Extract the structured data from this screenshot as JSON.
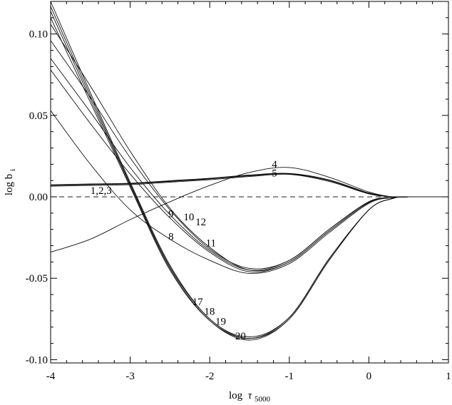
{
  "chart_data": {
    "type": "line",
    "title": "",
    "xlabel": "log",
    "xlabel_tau": "τ",
    "xlabel_sub": "5000",
    "ylabel": "log b",
    "ylabel_sub": "i",
    "xlim": [
      -4,
      1
    ],
    "ylim": [
      -0.102,
      0.12
    ],
    "xticks": [
      -4,
      -3,
      -2,
      -1,
      0,
      1
    ],
    "xtick_labels": [
      "-4",
      "-3",
      "-2",
      "-1",
      "0",
      "1"
    ],
    "yticks": [
      -0.1,
      -0.05,
      0.0,
      0.05,
      0.1
    ],
    "ytick_labels": [
      "-0.10",
      "-0.05",
      "0.00",
      "0.05",
      "0.10"
    ],
    "reference_line": {
      "y": 0.0,
      "style": "dashed"
    },
    "series": [
      {
        "name": "1",
        "x": [
          -4.0,
          -3.5,
          -3.0,
          -2.5,
          -2.0,
          -1.5,
          -1.0,
          -0.5,
          0.0,
          0.3,
          0.5,
          1.0
        ],
        "y": [
          0.007,
          0.0075,
          0.008,
          0.0095,
          0.011,
          0.013,
          0.014,
          0.01,
          0.002,
          0.0,
          0.0,
          0.0
        ]
      },
      {
        "name": "2",
        "x": [
          -4.0,
          -3.5,
          -3.0,
          -2.5,
          -2.0,
          -1.5,
          -1.0,
          -0.5,
          0.0,
          0.3,
          0.5,
          1.0
        ],
        "y": [
          0.0072,
          0.0077,
          0.0082,
          0.0097,
          0.0112,
          0.0132,
          0.0142,
          0.0102,
          0.0022,
          0.0,
          0.0,
          0.0
        ]
      },
      {
        "name": "3",
        "x": [
          -4.0,
          -3.5,
          -3.0,
          -2.5,
          -2.0,
          -1.5,
          -1.0,
          -0.5,
          0.0,
          0.3,
          0.5,
          1.0
        ],
        "y": [
          0.0074,
          0.0079,
          0.0084,
          0.0099,
          0.0114,
          0.0134,
          0.0144,
          0.0104,
          0.0024,
          0.0,
          0.0,
          0.0
        ]
      },
      {
        "name": "4",
        "x": [
          -4.0,
          -3.5,
          -3.0,
          -2.5,
          -2.0,
          -1.5,
          -1.0,
          -0.5,
          0.0,
          0.3,
          0.5,
          1.0
        ],
        "y": [
          -0.034,
          -0.026,
          -0.014,
          -0.003,
          0.007,
          0.015,
          0.018,
          0.012,
          0.003,
          0.0,
          0.0,
          0.0
        ]
      },
      {
        "name": "5",
        "x": [
          -4.0,
          -3.5,
          -3.0,
          -2.5,
          -2.0,
          -1.5,
          -1.0,
          -0.5,
          0.0,
          0.3,
          0.5,
          1.0
        ],
        "y": [
          0.0065,
          0.007,
          0.0075,
          0.009,
          0.0105,
          0.0125,
          0.0138,
          0.0095,
          0.0018,
          0.0,
          0.0,
          0.0
        ]
      },
      {
        "name": "8",
        "x": [
          -4.0,
          -3.5,
          -3.0,
          -2.5,
          -2.0,
          -1.5,
          -1.0,
          -0.5,
          0.0,
          0.3,
          0.5,
          1.0
        ],
        "y": [
          0.053,
          0.02,
          -0.008,
          -0.026,
          -0.039,
          -0.047,
          -0.041,
          -0.022,
          -0.004,
          -0.0005,
          0.0,
          0.0
        ]
      },
      {
        "name": "9",
        "x": [
          -4.0,
          -3.5,
          -3.0,
          -2.5,
          -2.0,
          -1.5,
          -1.0,
          -0.5,
          0.0,
          0.3,
          0.5,
          1.0
        ],
        "y": [
          0.078,
          0.045,
          0.014,
          -0.013,
          -0.034,
          -0.046,
          -0.04,
          -0.021,
          -0.0035,
          -0.0005,
          0.0,
          0.0
        ]
      },
      {
        "name": "10",
        "x": [
          -4.0,
          -3.5,
          -3.0,
          -2.5,
          -2.0,
          -1.5,
          -1.0,
          -0.5,
          0.0,
          0.3,
          0.5,
          1.0
        ],
        "y": [
          0.085,
          0.052,
          0.018,
          -0.011,
          -0.033,
          -0.045,
          -0.039,
          -0.02,
          -0.003,
          -0.0005,
          0.0,
          0.0
        ]
      },
      {
        "name": "11",
        "x": [
          -4.0,
          -3.5,
          -3.0,
          -2.5,
          -2.0,
          -1.5,
          -1.0,
          -0.5,
          0.0,
          0.3,
          0.5,
          1.0
        ],
        "y": [
          0.106,
          0.068,
          0.028,
          -0.007,
          -0.031,
          -0.045,
          -0.04,
          -0.021,
          -0.0035,
          -0.0005,
          0.0,
          0.0
        ]
      },
      {
        "name": "12",
        "x": [
          -4.0,
          -3.5,
          -3.0,
          -2.5,
          -2.0,
          -1.5,
          -1.0,
          -0.5,
          0.0,
          0.3,
          0.5,
          1.0
        ],
        "y": [
          0.096,
          0.061,
          0.024,
          -0.008,
          -0.032,
          -0.044,
          -0.039,
          -0.02,
          -0.003,
          -0.0005,
          0.0,
          0.0
        ]
      },
      {
        "name": "17",
        "x": [
          -4.0,
          -3.5,
          -3.0,
          -2.5,
          -2.0,
          -1.5,
          -1.0,
          -0.5,
          0.0,
          0.3,
          0.5,
          1.0
        ],
        "y": [
          0.11,
          0.058,
          0.006,
          -0.045,
          -0.076,
          -0.087,
          -0.074,
          -0.038,
          -0.008,
          -0.001,
          0.0,
          0.0
        ]
      },
      {
        "name": "18",
        "x": [
          -4.0,
          -3.5,
          -3.0,
          -2.5,
          -2.0,
          -1.5,
          -1.0,
          -0.5,
          0.0,
          0.3,
          0.5,
          1.0
        ],
        "y": [
          0.114,
          0.06,
          0.007,
          -0.044,
          -0.076,
          -0.088,
          -0.075,
          -0.039,
          -0.008,
          -0.001,
          0.0,
          0.0
        ]
      },
      {
        "name": "19",
        "x": [
          -4.0,
          -3.5,
          -3.0,
          -2.5,
          -2.0,
          -1.5,
          -1.0,
          -0.5,
          0.0,
          0.3,
          0.5,
          1.0
        ],
        "y": [
          0.117,
          0.062,
          0.008,
          -0.043,
          -0.075,
          -0.087,
          -0.075,
          -0.039,
          -0.008,
          -0.001,
          0.0,
          0.0
        ]
      },
      {
        "name": "20",
        "x": [
          -4.0,
          -3.5,
          -3.0,
          -2.5,
          -2.0,
          -1.5,
          -1.0,
          -0.5,
          0.0,
          0.3,
          0.5,
          1.0
        ],
        "y": [
          0.12,
          0.064,
          0.009,
          -0.042,
          -0.075,
          -0.086,
          -0.074,
          -0.038,
          -0.008,
          -0.001,
          0.0,
          0.0
        ]
      }
    ],
    "annotations": [
      {
        "text": "1,2,3",
        "x": -3.5,
        "y": 0.0018
      },
      {
        "text": "4",
        "x": -1.22,
        "y": 0.018
      },
      {
        "text": "5",
        "x": -1.22,
        "y": 0.0125
      },
      {
        "text": "8",
        "x": -2.52,
        "y": -0.0265
      },
      {
        "text": "9",
        "x": -2.52,
        "y": -0.0125
      },
      {
        "text": "10",
        "x": -2.33,
        "y": -0.0145
      },
      {
        "text": "12",
        "x": -2.18,
        "y": -0.0175
      },
      {
        "text": "11",
        "x": -2.05,
        "y": -0.0305
      },
      {
        "text": "17",
        "x": -2.22,
        "y": -0.0665
      },
      {
        "text": "18",
        "x": -2.07,
        "y": -0.0725
      },
      {
        "text": "19",
        "x": -1.93,
        "y": -0.0785
      },
      {
        "text": "20",
        "x": -1.68,
        "y": -0.0875
      }
    ]
  }
}
